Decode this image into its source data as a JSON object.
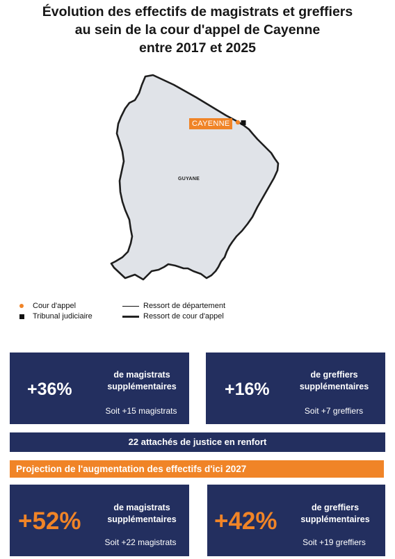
{
  "title": {
    "line1": "Évolution des effectifs de magistrats et greffiers",
    "line2": "au sein de la cour d'appel de Cayenne",
    "line3": "entre 2017 et 2025"
  },
  "map": {
    "city_label": "CAYENNE",
    "region_label": "GUYANE",
    "colors": {
      "land": "#e0e3e8",
      "border": "#1e1e1e",
      "marker_court": "#f08427",
      "marker_tribunal": "#111111"
    }
  },
  "legend": {
    "cour_appel": "Cour d'appel",
    "tribunal": "Tribunal judiciaire",
    "ressort_departement": "Ressort de département",
    "ressort_cour": "Ressort de cour d'appel"
  },
  "stats_2025": [
    {
      "value": "+36%",
      "label_line1": "de magistrats",
      "label_line2": "supplémentaires",
      "sub": "Soit +15 magistrats"
    },
    {
      "value": "+16%",
      "label_line1": "de greffiers",
      "label_line2": "supplémentaires",
      "sub": "Soit +7 greffiers"
    }
  ],
  "attaches_banner": "22 attachés de justice en renfort",
  "projection_banner": "Projection de l'augmentation des effectifs d'ici 2027",
  "stats_2027": [
    {
      "value": "+52%",
      "label_line1": "de magistrats",
      "label_line2": "supplémentaires",
      "sub": "Soit +22 magistrats"
    },
    {
      "value": "+42%",
      "label_line1": "de greffiers",
      "label_line2": "supplémentaires",
      "sub": "Soit +19 greffiers"
    }
  ],
  "colors": {
    "navy": "#232f5f",
    "orange": "#f08427"
  }
}
